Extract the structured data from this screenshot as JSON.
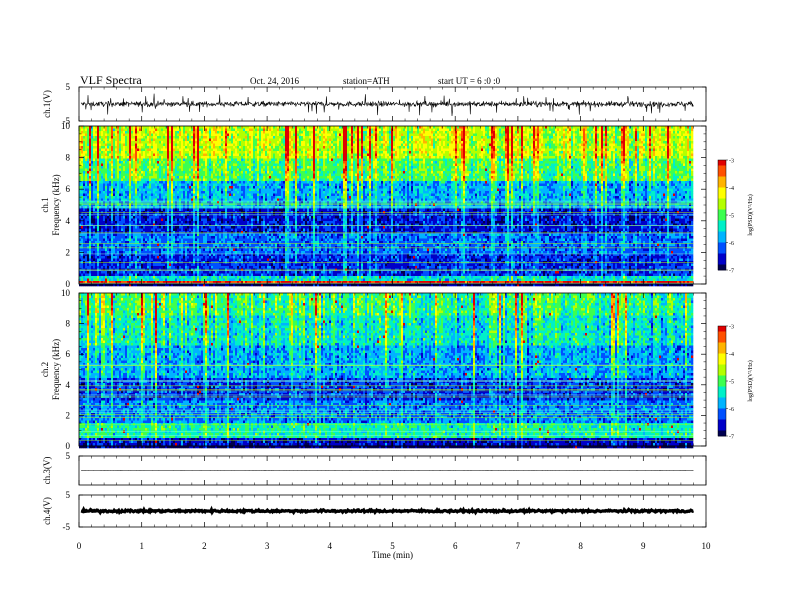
{
  "header": {
    "title": "VLF Spectra",
    "date": "Oct. 24, 2016",
    "station": "station=ATH",
    "start": "start UT = 6 :0 :0"
  },
  "colors": {
    "colormap": [
      "#000050",
      "#0000c8",
      "#0050ff",
      "#00b4ff",
      "#00f0c8",
      "#3cff50",
      "#b4ff00",
      "#ffff00",
      "#ffb400",
      "#ff5000",
      "#e00000"
    ],
    "trace": "#000000",
    "axis": "#000000"
  },
  "chart_data": [
    {
      "type": "line",
      "panel": "ch1-waveform",
      "ylabel": "ch.1(V)",
      "ylim": [
        -5,
        5
      ],
      "yticks": [
        "5",
        "-5"
      ],
      "description_values": {
        "mean": 0,
        "amplitude_typical": 1.2,
        "spike_max": 2.5
      }
    },
    {
      "type": "heatmap",
      "panel": "ch1-spectrogram",
      "ylabel": "Frequency (kHz)",
      "channel_label": "ch.1",
      "ylim": [
        0,
        10
      ],
      "yticks": [
        "0",
        "2",
        "4",
        "6",
        "8",
        "10"
      ],
      "colorbar": {
        "label": "log(PSD)(V²/Hz)",
        "range": [
          -7,
          -3
        ],
        "ticks": [
          "-3",
          "-4",
          "-5",
          "-6",
          "-7"
        ]
      },
      "bands": [
        {
          "fmin": 0.0,
          "fmax": 0.25,
          "level": -3.2
        },
        {
          "fmin": 0.25,
          "fmax": 0.55,
          "level": -5.5
        },
        {
          "fmin": 0.55,
          "fmax": 2.0,
          "level": -6.4
        },
        {
          "fmin": 2.0,
          "fmax": 3.2,
          "level": -6.1
        },
        {
          "fmin": 3.2,
          "fmax": 4.8,
          "level": -6.5
        },
        {
          "fmin": 4.8,
          "fmax": 6.5,
          "level": -5.8
        },
        {
          "fmin": 6.5,
          "fmax": 8.0,
          "level": -5.0
        },
        {
          "fmin": 8.0,
          "fmax": 10.0,
          "level": -4.5
        }
      ]
    },
    {
      "type": "heatmap",
      "panel": "ch2-spectrogram",
      "ylabel": "Frequency (kHz)",
      "channel_label": "ch.2",
      "ylim": [
        0,
        10
      ],
      "yticks": [
        "0",
        "2",
        "4",
        "6",
        "8",
        "10"
      ],
      "colorbar": {
        "label": "log(PSD)(V²/Hz)",
        "range": [
          -7,
          -3
        ],
        "ticks": [
          "-3",
          "-4",
          "-5",
          "-6",
          "-7"
        ]
      },
      "bands": [
        {
          "fmin": 0.0,
          "fmax": 0.5,
          "level": -6.6
        },
        {
          "fmin": 0.5,
          "fmax": 1.5,
          "level": -5.3
        },
        {
          "fmin": 1.5,
          "fmax": 3.0,
          "level": -6.0
        },
        {
          "fmin": 3.0,
          "fmax": 4.5,
          "level": -6.3
        },
        {
          "fmin": 4.5,
          "fmax": 6.5,
          "level": -5.8
        },
        {
          "fmin": 6.5,
          "fmax": 8.5,
          "level": -5.4
        },
        {
          "fmin": 8.5,
          "fmax": 10.0,
          "level": -5.1
        }
      ]
    },
    {
      "type": "line",
      "panel": "ch3-waveform",
      "ylabel": "ch.3(V)",
      "ylim": [
        -5,
        5
      ],
      "yticks": [
        "5"
      ],
      "description_values": {
        "mean": 0,
        "amplitude_typical": 0.02
      }
    },
    {
      "type": "line",
      "panel": "ch4-waveform",
      "ylabel": "ch.4(V)",
      "ylim": [
        -5,
        5
      ],
      "yticks": [
        "5",
        "-5"
      ],
      "description_values": {
        "mean": 0,
        "amplitude_typical": 0.3
      }
    },
    {
      "type": "axis",
      "panel": "time-axis",
      "xlabel": "Time (min)",
      "xlim": [
        0,
        10
      ],
      "xticks": [
        "0",
        "1",
        "2",
        "3",
        "4",
        "5",
        "6",
        "7",
        "8",
        "9",
        "10"
      ],
      "data_end": 9.8
    }
  ]
}
